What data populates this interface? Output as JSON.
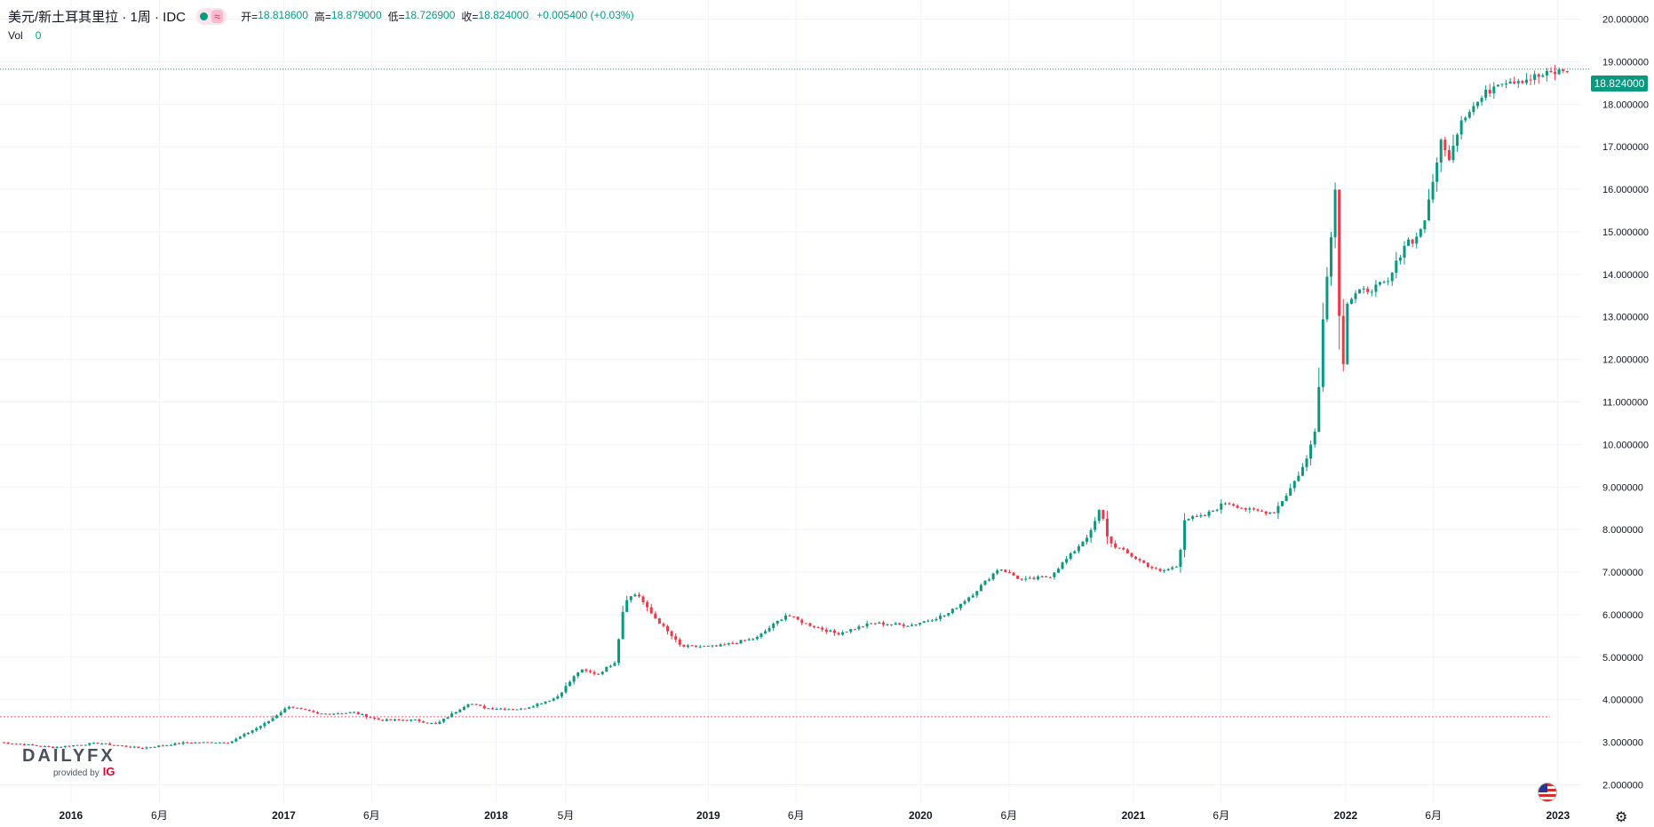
{
  "legend": {
    "title": "美元/新土耳其里拉 · 1周 · IDC",
    "open_label": "开=",
    "open": "18.818600",
    "high_label": "高=",
    "high": "18.879000",
    "low_label": "低=",
    "low": "18.726900",
    "close_label": "收=",
    "close": "18.824000",
    "change": "+0.005400 (+0.03%)",
    "approx_symbol": "≈"
  },
  "volume": {
    "label": "Vol",
    "value": "0"
  },
  "price_tag": "18.824000",
  "logo": {
    "brand": "DAILYFX",
    "sub": "provided by",
    "ig": "IG"
  },
  "colors": {
    "up": "#089981",
    "down": "#f23645",
    "grid": "#f0f3fa",
    "text": "#131722"
  },
  "icons": {
    "flag": "us-flag-icon",
    "settings": "gear-icon"
  },
  "chart_data": {
    "type": "candlestick",
    "title": "美元/新土耳其里拉 · 1周 · IDC",
    "interval": "1周",
    "source": "IDC",
    "y_ticks": [
      "2.000000",
      "3.000000",
      "4.000000",
      "5.000000",
      "6.000000",
      "7.000000",
      "8.000000",
      "9.000000",
      "10.000000",
      "11.000000",
      "12.000000",
      "13.000000",
      "14.000000",
      "15.000000",
      "16.000000",
      "17.000000",
      "18.000000",
      "19.000000",
      "20.000000"
    ],
    "ylim": [
      1.55,
      20.45
    ],
    "x_ticks": [
      {
        "label": "2016",
        "date": "2016-01-01",
        "bold": true
      },
      {
        "label": "6月",
        "date": "2016-06-01",
        "bold": false
      },
      {
        "label": "2017",
        "date": "2017-01-01",
        "bold": true
      },
      {
        "label": "6月",
        "date": "2017-06-01",
        "bold": false
      },
      {
        "label": "2018",
        "date": "2018-01-01",
        "bold": true
      },
      {
        "label": "5月",
        "date": "2018-05-01",
        "bold": false
      },
      {
        "label": "2019",
        "date": "2019-01-01",
        "bold": true
      },
      {
        "label": "6月",
        "date": "2019-06-01",
        "bold": false
      },
      {
        "label": "2020",
        "date": "2020-01-01",
        "bold": true
      },
      {
        "label": "6月",
        "date": "2020-06-01",
        "bold": false
      },
      {
        "label": "2021",
        "date": "2021-01-01",
        "bold": true
      },
      {
        "label": "6月",
        "date": "2021-06-01",
        "bold": false
      },
      {
        "label": "2022",
        "date": "2022-01-01",
        "bold": true
      },
      {
        "label": "6月",
        "date": "2022-06-01",
        "bold": false
      },
      {
        "label": "2023",
        "date": "2023-01-01",
        "bold": true
      }
    ],
    "last_price": 18.824,
    "reference_line": 3.6,
    "anchors": [
      [
        "2015-09-01",
        3.0
      ],
      [
        "2015-12-01",
        2.88
      ],
      [
        "2016-02-15",
        2.98
      ],
      [
        "2016-05-01",
        2.86
      ],
      [
        "2016-07-15",
        2.99
      ],
      [
        "2016-10-01",
        3.0
      ],
      [
        "2016-12-01",
        3.45
      ],
      [
        "2017-01-10",
        3.85
      ],
      [
        "2017-03-01",
        3.66
      ],
      [
        "2017-05-01",
        3.7
      ],
      [
        "2017-06-15",
        3.52
      ],
      [
        "2017-08-15",
        3.52
      ],
      [
        "2017-09-20",
        3.42
      ],
      [
        "2017-11-15",
        3.92
      ],
      [
        "2017-12-15",
        3.8
      ],
      [
        "2018-02-15",
        3.78
      ],
      [
        "2018-04-15",
        4.05
      ],
      [
        "2018-05-25",
        4.7
      ],
      [
        "2018-06-25",
        4.6
      ],
      [
        "2018-07-25",
        4.9
      ],
      [
        "2018-08-10",
        6.35
      ],
      [
        "2018-09-01",
        6.5
      ],
      [
        "2018-09-20",
        6.1
      ],
      [
        "2018-11-15",
        5.25
      ],
      [
        "2019-01-15",
        5.25
      ],
      [
        "2019-03-25",
        5.45
      ],
      [
        "2019-05-15",
        6.0
      ],
      [
        "2019-06-15",
        5.8
      ],
      [
        "2019-08-10",
        5.55
      ],
      [
        "2019-10-10",
        5.8
      ],
      [
        "2019-12-15",
        5.75
      ],
      [
        "2020-02-15",
        6.0
      ],
      [
        "2020-04-01",
        6.5
      ],
      [
        "2020-05-15",
        7.1
      ],
      [
        "2020-06-25",
        6.8
      ],
      [
        "2020-08-10",
        6.9
      ],
      [
        "2020-09-15",
        7.4
      ],
      [
        "2020-10-20",
        7.95
      ],
      [
        "2020-11-05",
        8.5
      ],
      [
        "2020-11-20",
        7.7
      ],
      [
        "2020-12-20",
        7.45
      ],
      [
        "2021-02-15",
        7.0
      ],
      [
        "2021-03-20",
        7.15
      ],
      [
        "2021-03-28",
        8.25
      ],
      [
        "2021-05-01",
        8.3
      ],
      [
        "2021-06-10",
        8.65
      ],
      [
        "2021-07-20",
        8.45
      ],
      [
        "2021-08-30",
        8.4
      ],
      [
        "2021-09-25",
        8.9
      ],
      [
        "2021-10-25",
        9.6
      ],
      [
        "2021-11-12",
        10.5
      ],
      [
        "2021-11-22",
        12.8
      ],
      [
        "2021-12-17",
        16.4
      ],
      [
        "2021-12-24",
        10.6
      ],
      [
        "2022-01-01",
        13.3
      ],
      [
        "2022-01-20",
        13.55
      ],
      [
        "2022-03-15",
        13.8
      ],
      [
        "2022-04-15",
        14.8
      ],
      [
        "2022-05-01",
        14.8
      ],
      [
        "2022-05-20",
        15.4
      ],
      [
        "2022-06-05",
        16.5
      ],
      [
        "2022-06-12",
        17.2
      ],
      [
        "2022-06-26",
        16.7
      ],
      [
        "2022-07-20",
        17.7
      ],
      [
        "2022-08-20",
        18.1
      ],
      [
        "2022-09-20",
        18.55
      ],
      [
        "2022-11-10",
        18.6
      ],
      [
        "2022-12-15",
        18.7
      ],
      [
        "2023-01-20",
        18.82
      ]
    ]
  }
}
